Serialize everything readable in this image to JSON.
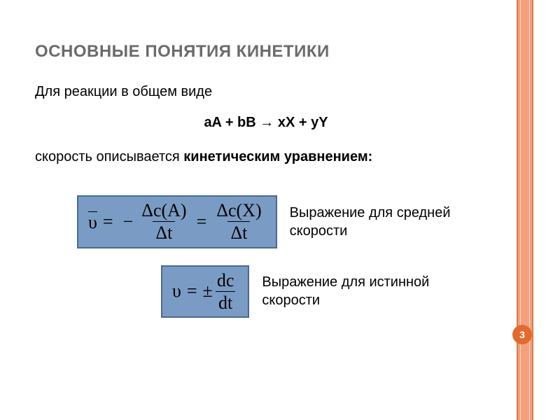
{
  "title": "ОСНОВНЫЕ ПОНЯТИЯ КИНЕТИКИ",
  "line1": "Для реакции в общем виде",
  "general_eq": "aA + bB → xX + yY",
  "line3_a": "скорость описывается ",
  "line3_b": "кинетическим уравнением:",
  "avg": {
    "lhs_sym": "υ",
    "num1": "Δc(A)",
    "den1": "Δt",
    "num2": "Δc(X)",
    "den2": "Δt",
    "label": "Выражение для средней скорости"
  },
  "true": {
    "lhs_sym": "υ",
    "pm": "±",
    "num": "dc",
    "den": "dt",
    "label": "Выражение для истинной скорости"
  },
  "page_number": "3",
  "colors": {
    "stripe": "#f4a07a",
    "stripe_border": "#d97b4f",
    "formula_bg": "#7a9bc4",
    "formula_border": "#4b6a94",
    "badge": "#e16b2e",
    "title_color": "#6b6b6b"
  }
}
